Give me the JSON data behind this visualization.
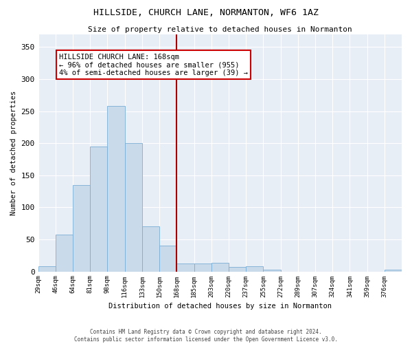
{
  "title": "HILLSIDE, CHURCH LANE, NORMANTON, WF6 1AZ",
  "subtitle": "Size of property relative to detached houses in Normanton",
  "xlabel": "Distribution of detached houses by size in Normanton",
  "ylabel": "Number of detached properties",
  "bar_color": "#c9daea",
  "bar_edge_color": "#7aadd4",
  "background_color": "#e8eef6",
  "vline_index": 8,
  "vline_color": "#aa0000",
  "annotation_title": "HILLSIDE CHURCH LANE: 168sqm",
  "annotation_line1": "← 96% of detached houses are smaller (955)",
  "annotation_line2": "4% of semi-detached houses are larger (39) →",
  "annotation_box_color": "#cc0000",
  "categories": [
    "29sqm",
    "46sqm",
    "64sqm",
    "81sqm",
    "98sqm",
    "116sqm",
    "133sqm",
    "150sqm",
    "168sqm",
    "185sqm",
    "203sqm",
    "220sqm",
    "237sqm",
    "255sqm",
    "272sqm",
    "289sqm",
    "307sqm",
    "324sqm",
    "341sqm",
    "359sqm",
    "376sqm"
  ],
  "values": [
    8,
    57,
    135,
    195,
    258,
    200,
    70,
    40,
    12,
    12,
    14,
    7,
    8,
    3,
    0,
    0,
    0,
    0,
    0,
    0,
    3
  ],
  "ylim": [
    0,
    370
  ],
  "yticks": [
    0,
    50,
    100,
    150,
    200,
    250,
    300,
    350
  ],
  "footer1": "Contains HM Land Registry data © Crown copyright and database right 2024.",
  "footer2": "Contains public sector information licensed under the Open Government Licence v3.0."
}
